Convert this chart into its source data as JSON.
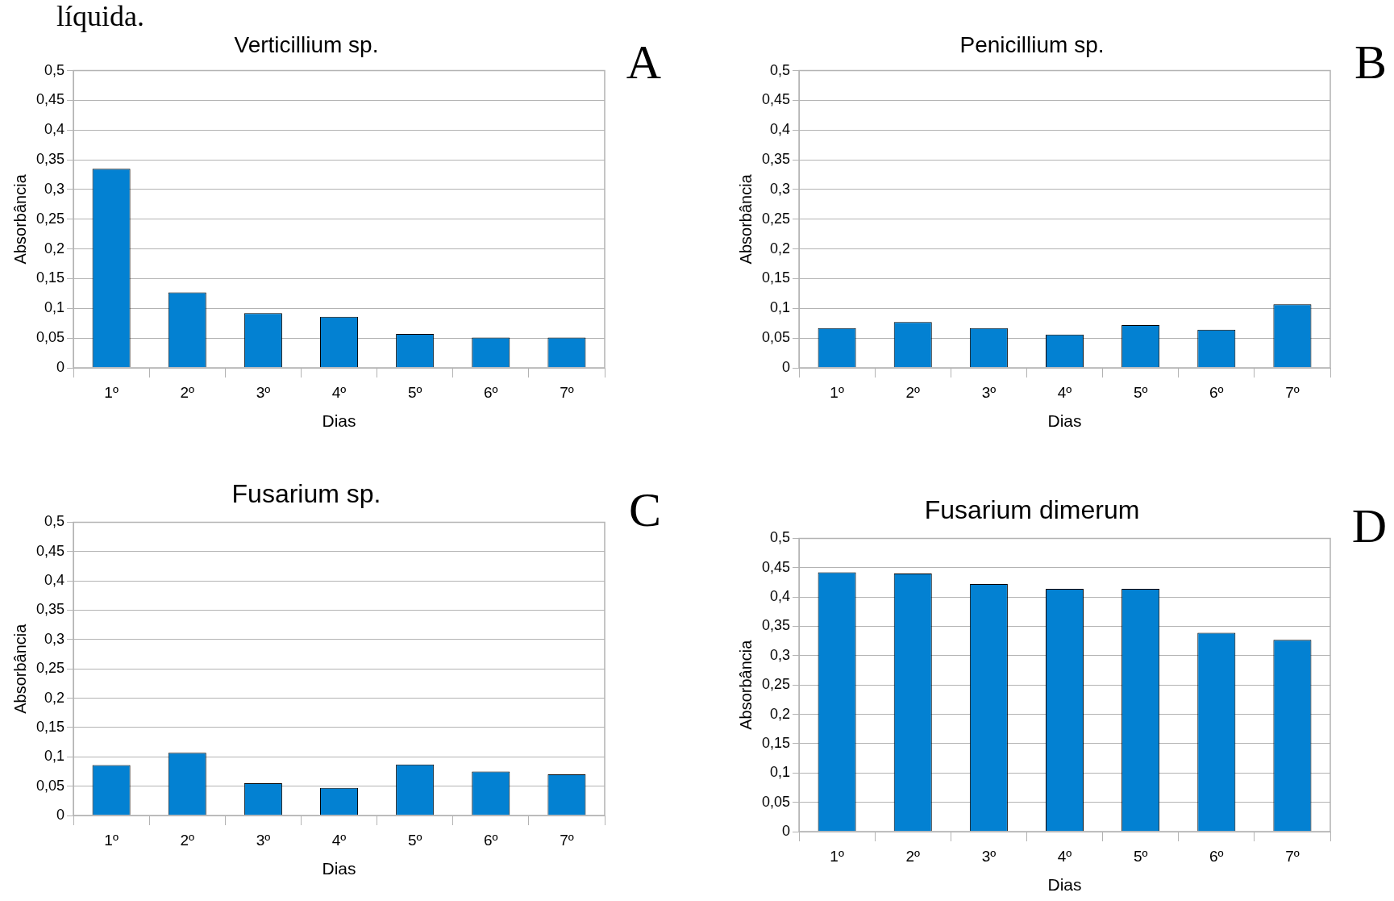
{
  "chart_data": [
    {
      "type": "bar",
      "title": "Verticillium sp.",
      "xlabel": "Dias",
      "ylabel": "Absorbância",
      "annotations": [
        "líquida.",
        "A"
      ],
      "categories": [
        "1º",
        "2º",
        "3º",
        "4º",
        "5º",
        "6º",
        "7º"
      ],
      "values": [
        0.335,
        0.127,
        0.092,
        0.086,
        0.057,
        0.051,
        0.051
      ],
      "color": "#0381d2",
      "ylim": [
        0,
        0.5
      ],
      "yticks": [
        {
          "value": 0,
          "label": "0"
        },
        {
          "value": 0.05,
          "label": "0,05"
        },
        {
          "value": 0.1,
          "label": "0,1"
        },
        {
          "value": 0.15,
          "label": "0,15"
        },
        {
          "value": 0.2,
          "label": "0,2"
        },
        {
          "value": 0.25,
          "label": "0,25"
        },
        {
          "value": 0.3,
          "label": "0,3"
        },
        {
          "value": 0.35,
          "label": "0,35"
        },
        {
          "value": 0.4,
          "label": "0,4"
        },
        {
          "value": 0.45,
          "label": "0,45"
        },
        {
          "value": 0.5,
          "label": "0,5"
        }
      ],
      "grid": "y",
      "legend": false
    },
    {
      "type": "bar",
      "title": "Penicillium sp.",
      "xlabel": "Dias",
      "ylabel": "Absorbância",
      "annotations": [
        "B"
      ],
      "categories": [
        "1º",
        "2º",
        "3º",
        "4º",
        "5º",
        "6º",
        "7º"
      ],
      "values": [
        0.067,
        0.077,
        0.067,
        0.056,
        0.072,
        0.064,
        0.107
      ],
      "color": "#0381d2",
      "ylim": [
        0,
        0.5
      ],
      "yticks": [
        {
          "value": 0,
          "label": "0"
        },
        {
          "value": 0.05,
          "label": "0,05"
        },
        {
          "value": 0.1,
          "label": "0,1"
        },
        {
          "value": 0.15,
          "label": "0,15"
        },
        {
          "value": 0.2,
          "label": "0,2"
        },
        {
          "value": 0.25,
          "label": "0,25"
        },
        {
          "value": 0.3,
          "label": "0,3"
        },
        {
          "value": 0.35,
          "label": "0,35"
        },
        {
          "value": 0.4,
          "label": "0,4"
        },
        {
          "value": 0.45,
          "label": "0,45"
        },
        {
          "value": 0.5,
          "label": "0,5"
        }
      ],
      "grid": "y",
      "legend": false
    },
    {
      "type": "bar",
      "title": "Fusarium sp.",
      "xlabel": "Dias",
      "ylabel": "Absorbância",
      "annotations": [
        "C"
      ],
      "categories": [
        "1º",
        "2º",
        "3º",
        "4º",
        "5º",
        "6º",
        "7º"
      ],
      "values": [
        0.086,
        0.107,
        0.055,
        0.047,
        0.087,
        0.075,
        0.07
      ],
      "color": "#0381d2",
      "ylim": [
        0,
        0.5
      ],
      "yticks": [
        {
          "value": 0,
          "label": "0"
        },
        {
          "value": 0.05,
          "label": "0,05"
        },
        {
          "value": 0.1,
          "label": "0,1"
        },
        {
          "value": 0.15,
          "label": "0,15"
        },
        {
          "value": 0.2,
          "label": "0,2"
        },
        {
          "value": 0.25,
          "label": "0,25"
        },
        {
          "value": 0.3,
          "label": "0,3"
        },
        {
          "value": 0.35,
          "label": "0,35"
        },
        {
          "value": 0.4,
          "label": "0,4"
        },
        {
          "value": 0.45,
          "label": "0,45"
        },
        {
          "value": 0.5,
          "label": "0,5"
        }
      ],
      "grid": "y",
      "legend": false
    },
    {
      "type": "bar",
      "title": "Fusarium dimerum",
      "xlabel": "Dias",
      "ylabel": "Absorbância",
      "annotations": [
        "D"
      ],
      "categories": [
        "1º",
        "2º",
        "3º",
        "4º",
        "5º",
        "6º",
        "7º"
      ],
      "values": [
        0.442,
        0.44,
        0.422,
        0.414,
        0.414,
        0.339,
        0.327
      ],
      "color": "#0381d2",
      "ylim": [
        0,
        0.5
      ],
      "yticks": [
        {
          "value": 0,
          "label": "0"
        },
        {
          "value": 0.05,
          "label": "0,05"
        },
        {
          "value": 0.1,
          "label": "0,1"
        },
        {
          "value": 0.15,
          "label": "0,15"
        },
        {
          "value": 0.2,
          "label": "0,2"
        },
        {
          "value": 0.25,
          "label": "0,25"
        },
        {
          "value": 0.3,
          "label": "0,3"
        },
        {
          "value": 0.35,
          "label": "0,35"
        },
        {
          "value": 0.4,
          "label": "0,4"
        },
        {
          "value": 0.45,
          "label": "0,45"
        },
        {
          "value": 0.5,
          "label": "0,5"
        }
      ],
      "grid": "y",
      "legend": false
    }
  ]
}
